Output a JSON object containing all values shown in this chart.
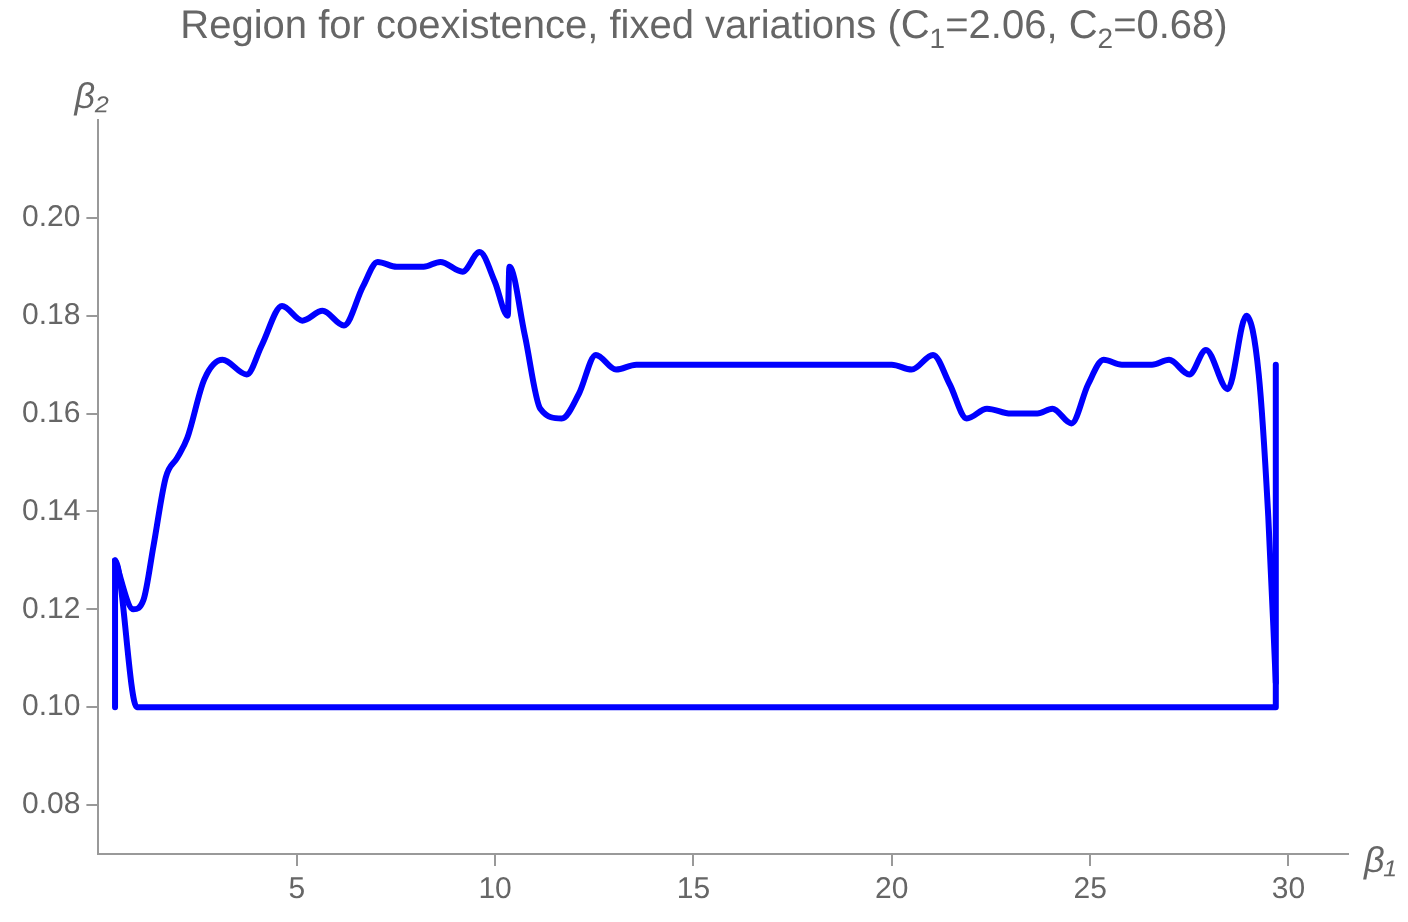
{
  "chart_data": {
    "type": "line",
    "title": "Region for coexistence, fixed variations (C$_{1}$=2.06, C$_{2}$=0.68)",
    "xlabel": "β₁",
    "ylabel": "β₂",
    "xlim": [
      0,
      31.5
    ],
    "ylim": [
      0.07,
      0.22
    ],
    "xticks": [
      5,
      10,
      15,
      20,
      25,
      30
    ],
    "yticks": [
      {
        "value": 0.08,
        "label": "0.08"
      },
      {
        "value": 0.1,
        "label": "0.10"
      },
      {
        "value": 0.12,
        "label": "0.12"
      },
      {
        "value": 0.14,
        "label": "0.14"
      },
      {
        "value": 0.16,
        "label": "0.16"
      },
      {
        "value": 0.18,
        "label": "0.18"
      },
      {
        "value": 0.2,
        "label": "0.20"
      }
    ],
    "grid": false,
    "legend": false,
    "marker": "none",
    "line_style": "solid",
    "series": [
      {
        "color": "#0000ff",
        "x": [
          0.42,
          0.88,
          1.14,
          1.39,
          1.7,
          1.99,
          2.24,
          2.67,
          3.13,
          3.74,
          4.12,
          4.63,
          5.14,
          5.65,
          6.19,
          6.67,
          7.04,
          7.52,
          8.2,
          8.62,
          9.18,
          9.61,
          9.99,
          10.32,
          10.36,
          10.75,
          11.14,
          11.68,
          12.11,
          12.54,
          13.05,
          13.56,
          13.98,
          16.2,
          18.9,
          20.0,
          20.5,
          21.04,
          21.46,
          21.89,
          22.4,
          23.0,
          23.67,
          24.05,
          24.53,
          24.95,
          25.34,
          25.8,
          26.56,
          26.99,
          27.5,
          27.92,
          28.47,
          28.94,
          29.25,
          29.49,
          29.68
        ],
        "values": [
          0.13,
          0.12,
          0.122,
          0.133,
          0.147,
          0.151,
          0.155,
          0.167,
          0.171,
          0.168,
          0.174,
          0.182,
          0.179,
          0.181,
          0.178,
          0.186,
          0.191,
          0.19,
          0.19,
          0.191,
          0.189,
          0.193,
          0.187,
          0.18,
          0.19,
          0.176,
          0.161,
          0.159,
          0.164,
          0.172,
          0.169,
          0.17,
          0.17,
          0.17,
          0.17,
          0.17,
          0.169,
          0.172,
          0.166,
          0.159,
          0.161,
          0.16,
          0.16,
          0.161,
          0.158,
          0.166,
          0.171,
          0.17,
          0.17,
          0.171,
          0.168,
          0.173,
          0.165,
          0.18,
          0.168,
          0.139,
          0.105
        ]
      },
      {
        "color": "#0000ff",
        "x": [
          0.42,
          0.42,
          0.97,
          29.68,
          29.68
        ],
        "values": [
          0.1,
          0.13,
          0.1,
          0.1,
          0.17
        ]
      }
    ]
  }
}
